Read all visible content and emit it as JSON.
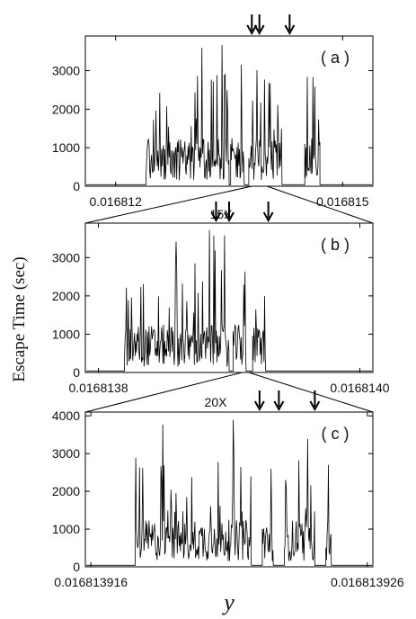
{
  "figure": {
    "ylabel": "Escape Time (sec)",
    "xlabel": "y",
    "zoom_labels": [
      "15X",
      "20X"
    ]
  },
  "chart_data": [
    {
      "type": "line",
      "panel_label": "( a )",
      "xlim": [
        0.0168116,
        0.0168154
      ],
      "ylim": [
        0,
        3900
      ],
      "x_tick_labels": [
        "0.016812",
        "0.016815"
      ],
      "x_tick_values": [
        0.016812,
        0.016815
      ],
      "y_ticks": [
        0,
        1000,
        2000,
        3000
      ],
      "active_ranges": [
        [
          0.0168124,
          0.0168135
        ],
        [
          0.01681352,
          0.0168137
        ],
        [
          0.01681376,
          0.0168142
        ],
        [
          0.0168145,
          0.0168147
        ]
      ],
      "arrows_x": [
        0.0168138,
        0.0168139,
        0.0168143
      ],
      "zoom_window": [
        0.0168138,
        0.016814
      ],
      "line_color": "#000000"
    },
    {
      "type": "line",
      "panel_label": "( b )",
      "xlim": [
        0.01681379,
        0.01681401
      ],
      "ylim": [
        0,
        3900
      ],
      "x_tick_labels": [
        "0.0168138",
        "0.0168140"
      ],
      "x_tick_values": [
        0.0168138,
        0.016814
      ],
      "y_ticks": [
        0,
        1000,
        2000,
        3000
      ],
      "active_ranges": [
        [
          0.01681382,
          0.0168139
        ],
        [
          0.016813903,
          0.016813913
        ],
        [
          0.016813918,
          0.016813928
        ]
      ],
      "arrows_x": [
        0.01681389,
        0.0168139,
        0.01681393
      ],
      "zoom_window": [
        0.01681391,
        0.016813915
      ],
      "line_color": "#000000"
    },
    {
      "type": "line",
      "panel_label": "( c )",
      "xlim": [
        0.0168139158,
        0.0168139262
      ],
      "ylim": [
        0,
        4100
      ],
      "x_tick_labels": [
        "0.016813916",
        "0.016813926"
      ],
      "x_tick_values": [
        0.016813916,
        0.016813926
      ],
      "y_ticks": [
        0,
        1000,
        2000,
        3000,
        4000
      ],
      "active_ranges": [
        [
          0.0168139176,
          0.0168139218
        ],
        [
          0.0168139222,
          0.0168139226
        ],
        [
          0.016813923,
          0.0168139241
        ],
        [
          0.0168139245,
          0.0168139247
        ]
      ],
      "arrows_x": [
        0.0168139221,
        0.0168139228,
        0.0168139241
      ],
      "line_color": "#000000"
    }
  ]
}
